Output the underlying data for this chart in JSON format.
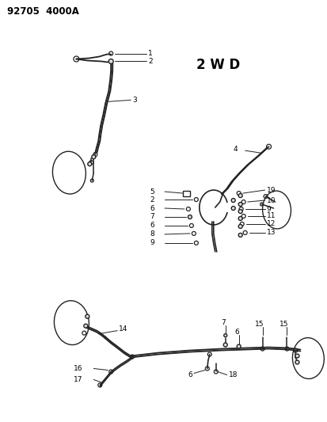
{
  "title": "92705  4000A",
  "subtitle": "2 W D",
  "bg": "#ffffff",
  "lc": "#222222",
  "tc": "#000000",
  "fig_w": 4.14,
  "fig_h": 5.33,
  "dpi": 100
}
